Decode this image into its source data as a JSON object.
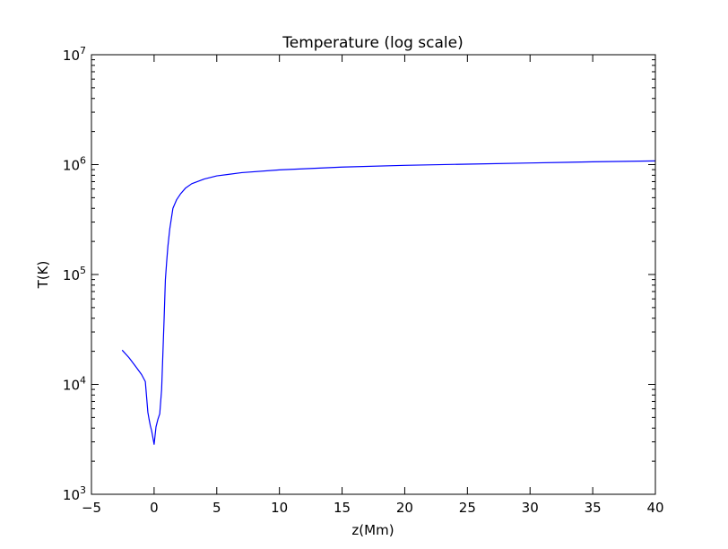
{
  "chart_data": {
    "type": "line",
    "title": "Temperature (log scale)",
    "xlabel": "z(Mm)",
    "ylabel": "T(K)",
    "xlim": [
      -5,
      40
    ],
    "ylim": [
      1000,
      10000000
    ],
    "yscale": "log",
    "grid": false,
    "x_ticks": [
      -5,
      0,
      5,
      10,
      15,
      20,
      25,
      30,
      35,
      40
    ],
    "x_tick_labels": [
      "−5",
      "0",
      "5",
      "10",
      "15",
      "20",
      "25",
      "30",
      "35",
      "40"
    ],
    "y_ticks": [
      1000,
      10000,
      100000,
      1000000,
      10000000
    ],
    "y_tick_labels": [
      {
        "base": "10",
        "exp": "3"
      },
      {
        "base": "10",
        "exp": "4"
      },
      {
        "base": "10",
        "exp": "5"
      },
      {
        "base": "10",
        "exp": "6"
      },
      {
        "base": "10",
        "exp": "7"
      }
    ],
    "series": [
      {
        "color": "#0000ff",
        "x": [
          -2.55,
          -2.0,
          -1.5,
          -1.0,
          -0.7,
          -0.5,
          -0.4,
          -0.3,
          -0.2,
          0.0,
          0.15,
          0.3,
          0.45,
          0.6,
          0.8,
          0.9,
          1.0,
          1.1,
          1.25,
          1.5,
          1.8,
          2.1,
          2.5,
          3.0,
          4.0,
          5.0,
          7.0,
          10.0,
          15.0,
          20.0,
          25.0,
          30.0,
          35.0,
          40.0
        ],
        "y": [
          20500,
          17500,
          14700,
          12300,
          10600,
          5600,
          4800,
          4200,
          3800,
          2850,
          4100,
          4800,
          5400,
          9000,
          40000,
          90000,
          130000,
          180000,
          260000,
          400000,
          480000,
          540000,
          610000,
          670000,
          740000,
          790000,
          845000,
          895000,
          950000,
          985000,
          1010000,
          1035000,
          1060000,
          1080000
        ]
      }
    ]
  }
}
